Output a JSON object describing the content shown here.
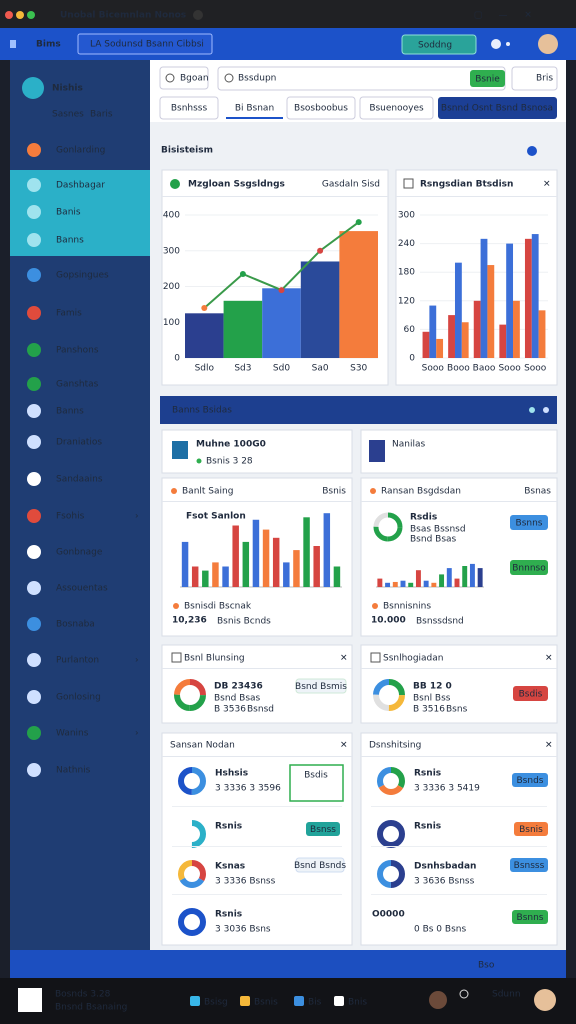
{
  "window": {
    "title": "Unobal Bicemnlan Nonos"
  },
  "header": {
    "brand": "Bims",
    "breadcrumb": "LA Sodunsd Bsann Cibbsi",
    "button": "Soddng"
  },
  "sidebar": {
    "title": "Nishis",
    "tabs": [
      "Sasnes",
      "Baris"
    ],
    "items": [
      "Gonlarding",
      "Dashbagar",
      "Banis",
      "Banns",
      "Gopsingues",
      "Famis",
      "Panshons",
      "Ganshtas",
      "Banns",
      "Draniatios",
      "Sandaains",
      "Fsohis",
      "Gonbnage",
      "Assouentas",
      "Bosnaba",
      "Purlanton",
      "Gonlosing",
      "Wanins",
      "Nathnis"
    ]
  },
  "toolbar": {
    "filter": "Bgoan",
    "search": "Bssdupn",
    "search_button": "Bsnie",
    "button": "Bris",
    "tabs": [
      "Bsnhsss",
      "Bi Bsnan",
      "Bsosboobus",
      "Bsuenooyes"
    ],
    "primary": "Bsnnd Osnt Bsnd Bsnosa"
  },
  "section": {
    "title": "Bisisteism"
  },
  "chart_data": [
    {
      "type": "bar-line",
      "title": "Mzgloan Ssgsldngs",
      "subtitle": "Gasdaln Sisd",
      "categories": [
        "Sdlo",
        "Sd3",
        "Sd0",
        "Sa0",
        "S30"
      ],
      "values": [
        125,
        160,
        195,
        270,
        355
      ],
      "colors": [
        "#2b3f8f",
        "#23a14a",
        "#3c6fd8",
        "#2a4a9a",
        "#f47c3c"
      ],
      "line": {
        "color": "#3a9a4a",
        "values": [
          140,
          235,
          190,
          300,
          380
        ]
      },
      "ylim": [
        0,
        400
      ],
      "yticks": [
        0,
        100,
        200,
        300,
        400
      ]
    },
    {
      "type": "grouped-bar",
      "title": "Rsngsdian Btsdisn",
      "categories": [
        "Sooo",
        "Booo",
        "Baoo",
        "Sooo",
        "Sooo"
      ],
      "series": [
        {
          "color": "#d64541",
          "values": [
            55,
            90,
            120,
            70,
            250
          ]
        },
        {
          "color": "#3c6fd8",
          "values": [
            110,
            200,
            250,
            240,
            260
          ]
        },
        {
          "color": "#f47c3c",
          "values": [
            40,
            75,
            195,
            120,
            100
          ]
        }
      ],
      "ylim": [
        0,
        300
      ],
      "yticks": [
        0,
        60,
        120,
        180,
        240,
        300
      ]
    },
    {
      "type": "mini-bar",
      "title": "Banlt Saing",
      "link": "Bsnis",
      "label": "Fsot Sanlon",
      "legend": "Bsnisdi Bscnak",
      "total": "10,236",
      "caption": "Bsnis Bcnds",
      "values": [
        55,
        25,
        20,
        30,
        25,
        75,
        55,
        82,
        70,
        60,
        30,
        45,
        85,
        50,
        90,
        25
      ],
      "colors": [
        "#3c6fd8",
        "#d64541",
        "#23a14a",
        "#f47c3c",
        "#3c6fd8",
        "#d64541",
        "#23a14a",
        "#3c6fd8",
        "#f47c3c",
        "#d64541",
        "#3c6fd8",
        "#f47c3c",
        "#23a14a",
        "#d64541",
        "#3c6fd8",
        "#23a14a"
      ],
      "ylim": [
        0,
        100
      ]
    },
    {
      "type": "mini-bar",
      "title": "Ransan Bsgdsdan",
      "link": "Bsnas",
      "label": "Rsdis",
      "legend": "Bsnnisnins",
      "total": "10.000",
      "caption": "Bsnssdsnd",
      "values": [
        20,
        10,
        12,
        15,
        10,
        40,
        15,
        10,
        30,
        45,
        20,
        50,
        55,
        45
      ],
      "colors": [
        "#d64541",
        "#3c6fd8",
        "#f47c3c",
        "#3c6fd8",
        "#23a14a",
        "#d64541",
        "#3c6fd8",
        "#f47c3c",
        "#23a14a",
        "#3c6fd8",
        "#d64541",
        "#23a14a",
        "#3c6fd8",
        "#2b3f8f"
      ],
      "ylim": [
        0,
        100
      ]
    }
  ],
  "detail": {
    "ring_title": "Rsdis",
    "ring_lines": [
      "Bsas Bssnsd",
      "Bsnd Bsas"
    ],
    "buttons": [
      "Bsnns",
      "Bnnnso"
    ]
  },
  "banner": {
    "title": "Banns Bsidas"
  },
  "cards": [
    {
      "title": "Muhne 100G0",
      "sub": "Bsnis 3 28"
    },
    {
      "title": "Nanilas"
    }
  ],
  "stats": [
    {
      "title": "Bsnl Blunsing",
      "value": "DB 23436",
      "line": "Bsnd Bsas",
      "red": "B 3536",
      "gray": "Bsnsd",
      "pill": "Bsnd Bsmis"
    },
    {
      "title": "Ssnlhogiadan",
      "value": "BB 12 0",
      "line": "Bsnl Bss",
      "red": "B 3516",
      "gray": "Bsns",
      "pill": "Bsdis"
    }
  ],
  "lists": [
    {
      "title": "Sansan Nodan",
      "items": [
        {
          "name": "Hshsis",
          "detail": "3 3336 3 3596",
          "pill": "Bsdis"
        },
        {
          "name": "Rsnis",
          "detail": "",
          "pill": "Bsnss"
        },
        {
          "name": "Ksnas",
          "detail": "3 3336 Bsnss",
          "pill": "Bsnd Bsnds"
        },
        {
          "name": "Rsnis",
          "detail": "3 3036 Bsns",
          "pill": ""
        }
      ]
    },
    {
      "title": "Dsnshitsing",
      "items": [
        {
          "name": "Rsnis",
          "detail": "3 3336 3 5419",
          "pill": "Bsnds"
        },
        {
          "name": "Rsnis",
          "detail": "",
          "pill": "Bsnis"
        },
        {
          "name": "Dsnhsbadan",
          "detail": "3 3636 Bsnss",
          "pill": "Bsnsss"
        },
        {
          "name": "O0000",
          "detail": "0 Bs 0 Bsns",
          "pill": "Bsnns"
        }
      ]
    }
  ],
  "status": {
    "text": "Bso"
  },
  "taskbar": {
    "lines": [
      "Bosnds 3.28",
      "Bnsnd Bsanaing"
    ],
    "apps": [
      "Bsisg",
      "Bsnis",
      "Bis",
      "Bnis"
    ],
    "user": "Sdunn"
  }
}
